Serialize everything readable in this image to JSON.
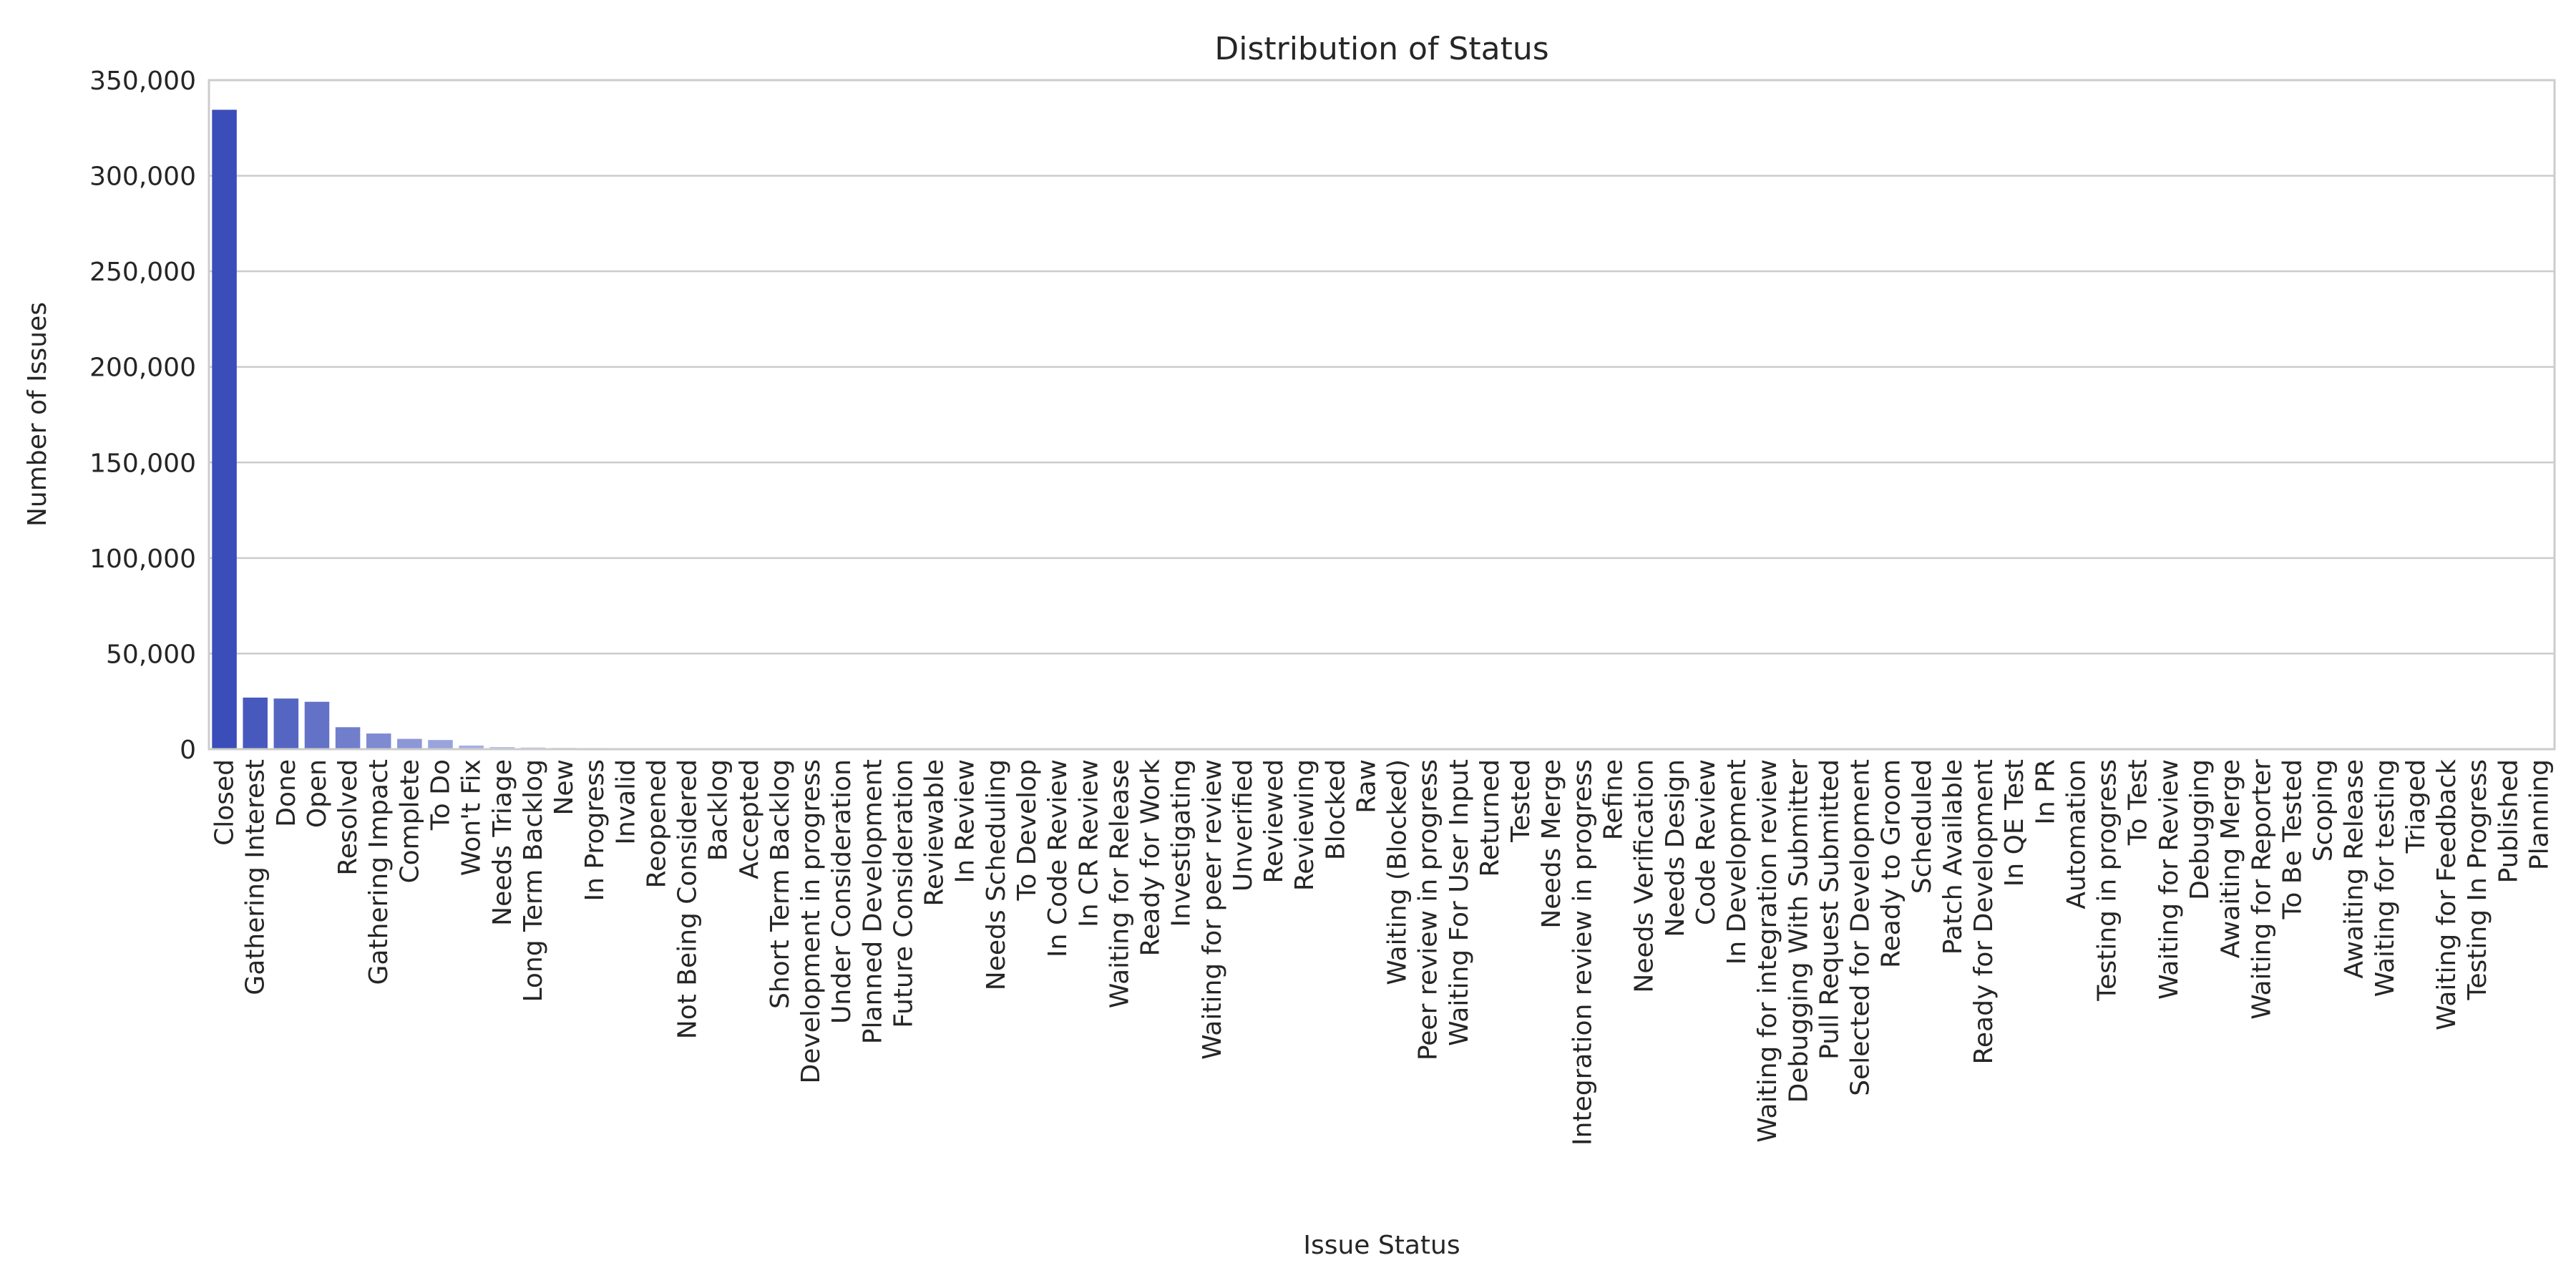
{
  "chart_data": {
    "type": "bar",
    "title": "Distribution of Status",
    "xlabel": "Issue Status",
    "ylabel": "Number of Issues",
    "ylim": [
      0,
      350000
    ],
    "yticks": [
      0,
      50000,
      100000,
      150000,
      200000,
      250000,
      300000,
      350000
    ],
    "ytick_labels": [
      "0",
      "50,000",
      "100,000",
      "150,000",
      "200,000",
      "250,000",
      "300,000",
      "350,000"
    ],
    "grid": "horizontal",
    "colors": {
      "bar_start": "#3a4db8",
      "bar_end": "#dde0f5",
      "grid": "#cccccc",
      "frame": "#cccccc",
      "text": "#262626"
    },
    "categories": [
      "Closed",
      "Gathering Interest",
      "Done",
      "Open",
      "Resolved",
      "Gathering Impact",
      "Complete",
      "To Do",
      "Won't Fix",
      "Needs Triage",
      "Long Term Backlog",
      "New",
      "In Progress",
      "Invalid",
      "Reopened",
      "Not Being Considered",
      "Backlog",
      "Accepted",
      "Short Term Backlog",
      "Development in progress",
      "Under Consideration",
      "Planned Development",
      "Future Consideration",
      "Reviewable",
      "In Review",
      "Needs Scheduling",
      "To Develop",
      "In Code Review",
      "In CR Review",
      "Waiting for Release",
      "Ready for Work",
      "Investigating",
      "Waiting for peer review",
      "Unverified",
      "Reviewed",
      "Reviewing",
      "Blocked",
      "Raw",
      "Waiting (Blocked)",
      "Peer review in progress",
      "Waiting For User Input",
      "Returned",
      "Tested",
      "Needs Merge",
      "Integration review in progress",
      "Refine",
      "Needs Verification",
      "Needs Design",
      "Code Review",
      "In Development",
      "Waiting for integration review",
      "Debugging With Submitter",
      "Pull Request Submitted",
      "Selected for Development",
      "Ready to Groom",
      "Scheduled",
      "Patch Available",
      "Ready for Development",
      "In QE Test",
      "In PR",
      "Automation",
      "Testing in progress",
      "To Test",
      "Waiting for Review",
      "Debugging",
      "Awaiting Merge",
      "Waiting for Reporter",
      "To Be Tested",
      "Scoping",
      "Awaiting Release",
      "Waiting for testing",
      "Triaged",
      "Waiting for Feedback",
      "Testing In Progress",
      "Published",
      "Planning"
    ],
    "values": [
      334500,
      27000,
      26500,
      24800,
      11500,
      8200,
      5400,
      4800,
      1900,
      1100,
      900,
      700,
      600,
      500,
      450,
      400,
      350,
      300,
      250,
      220,
      200,
      180,
      160,
      150,
      140,
      130,
      120,
      110,
      100,
      95,
      90,
      85,
      80,
      75,
      70,
      65,
      60,
      55,
      50,
      48,
      46,
      44,
      42,
      40,
      38,
      36,
      34,
      32,
      30,
      28,
      26,
      25,
      24,
      23,
      22,
      21,
      20,
      19,
      18,
      17,
      16,
      15,
      14,
      13,
      12,
      11,
      10,
      9,
      8,
      7,
      6,
      5,
      4,
      3,
      2,
      1
    ]
  }
}
